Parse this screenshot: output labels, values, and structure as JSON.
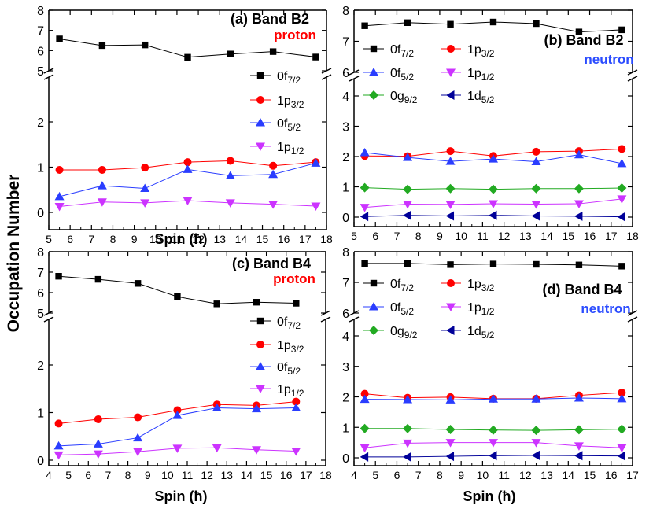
{
  "figure": {
    "ylabel": "Occupation Number",
    "xlabel_top_left": "Spin (ħ)",
    "xlabel_bottom_left": "Spin (ħ)",
    "xlabel_bottom_right": "Spin (ħ)"
  },
  "colors": {
    "0f7/2": "#000000",
    "1p3/2": "#ff0000",
    "0f5/2": "#2a3dff",
    "1p1/2": "#cc33ff",
    "0g9/2": "#22aa22",
    "1d5/2": "#000099",
    "proton_label": "#ff0000",
    "neutron_label": "#2b4cff"
  },
  "chart_data": [
    {
      "panel": "a",
      "type": "line",
      "title": "(a) Band B2",
      "subtitle": "proton",
      "x": [
        5.5,
        7.5,
        9.5,
        11.5,
        13.5,
        15.5,
        17.5
      ],
      "xlim": [
        5,
        18
      ],
      "xticks": [
        5,
        6,
        7,
        8,
        9,
        10,
        11,
        12,
        13,
        14,
        15,
        16,
        17,
        18
      ],
      "upper_ylim": [
        5,
        8
      ],
      "upper_yticks": [
        5,
        6,
        7,
        8
      ],
      "lower_ylim": [
        0,
        3
      ],
      "lower_yticks": [
        0,
        1,
        2
      ],
      "series": [
        {
          "name": "0f7/2",
          "orb": "f",
          "sub": "7/2",
          "marker": "square",
          "axis": "upper",
          "values": [
            6.58,
            6.25,
            6.28,
            5.67,
            5.83,
            5.95,
            5.68
          ]
        },
        {
          "name": "1p3/2",
          "orb": "p",
          "sub": "3/2",
          "marker": "circle",
          "axis": "lower",
          "values": [
            0.94,
            0.94,
            0.99,
            1.11,
            1.14,
            1.03,
            1.11
          ]
        },
        {
          "name": "0f5/2",
          "orb": "f",
          "sub": "5/2",
          "marker": "triangle-up",
          "axis": "lower",
          "values": [
            0.35,
            0.59,
            0.53,
            0.95,
            0.81,
            0.84,
            1.09
          ]
        },
        {
          "name": "1p1/2",
          "orb": "p",
          "sub": "1/2",
          "marker": "triangle-down",
          "axis": "lower",
          "values": [
            0.13,
            0.23,
            0.21,
            0.26,
            0.21,
            0.18,
            0.14
          ]
        }
      ]
    },
    {
      "panel": "b",
      "type": "line",
      "title": "(b) Band B2",
      "subtitle": "neutron",
      "x": [
        5.5,
        7.5,
        9.5,
        11.5,
        13.5,
        15.5,
        17.5
      ],
      "xlim": [
        5,
        18
      ],
      "xticks": [
        5,
        6,
        7,
        8,
        9,
        10,
        11,
        12,
        13,
        14,
        15,
        16,
        17,
        18
      ],
      "upper_ylim": [
        6,
        8
      ],
      "upper_yticks": [
        6,
        7,
        8
      ],
      "lower_ylim": [
        -0.2,
        4.3
      ],
      "lower_yticks": [
        0,
        1,
        2,
        3,
        4
      ],
      "series": [
        {
          "name": "0f7/2",
          "orb": "f",
          "sub": "7/2",
          "marker": "square",
          "axis": "upper",
          "values": [
            7.5,
            7.6,
            7.55,
            7.62,
            7.57,
            7.3,
            7.37
          ]
        },
        {
          "name": "1p3/2",
          "orb": "p",
          "sub": "3/2",
          "marker": "circle",
          "axis": "lower",
          "values": [
            2.02,
            2.01,
            2.18,
            2.02,
            2.16,
            2.18,
            2.25
          ]
        },
        {
          "name": "0f5/2",
          "orb": "f",
          "sub": "5/2",
          "marker": "triangle-up",
          "axis": "lower",
          "values": [
            2.13,
            1.97,
            1.84,
            1.92,
            1.83,
            2.06,
            1.77
          ]
        },
        {
          "name": "1p1/2",
          "orb": "p",
          "sub": "1/2",
          "marker": "triangle-down",
          "axis": "lower",
          "values": [
            0.32,
            0.43,
            0.42,
            0.44,
            0.43,
            0.44,
            0.6
          ]
        },
        {
          "name": "0g9/2",
          "orb": "g",
          "sub": "9/2",
          "marker": "diamond",
          "axis": "lower",
          "values": [
            0.97,
            0.92,
            0.94,
            0.92,
            0.94,
            0.94,
            0.96
          ]
        },
        {
          "name": "1d5/2",
          "orb": "d",
          "sub": "5/2",
          "marker": "triangle-left",
          "axis": "lower",
          "values": [
            0.02,
            0.06,
            0.04,
            0.06,
            0.04,
            0.03,
            0.01
          ]
        }
      ]
    },
    {
      "panel": "c",
      "type": "line",
      "title": "(c) Band B4",
      "subtitle": "proton",
      "x": [
        4.5,
        6.5,
        8.5,
        10.5,
        12.5,
        14.5,
        16.5
      ],
      "xlim": [
        4,
        18
      ],
      "xticks": [
        4,
        5,
        6,
        7,
        8,
        9,
        10,
        11,
        12,
        13,
        14,
        15,
        16,
        17,
        18
      ],
      "upper_ylim": [
        5,
        8
      ],
      "upper_yticks": [
        5,
        6,
        7,
        8
      ],
      "lower_ylim": [
        0,
        3
      ],
      "lower_yticks": [
        0,
        1,
        2
      ],
      "series": [
        {
          "name": "0f7/2",
          "orb": "f",
          "sub": "7/2",
          "marker": "square",
          "axis": "upper",
          "values": [
            6.8,
            6.65,
            6.45,
            5.8,
            5.45,
            5.53,
            5.48
          ]
        },
        {
          "name": "1p3/2",
          "orb": "p",
          "sub": "3/2",
          "marker": "circle",
          "axis": "lower",
          "values": [
            0.77,
            0.86,
            0.9,
            1.05,
            1.17,
            1.15,
            1.23
          ]
        },
        {
          "name": "0f5/2",
          "orb": "f",
          "sub": "5/2",
          "marker": "triangle-up",
          "axis": "lower",
          "values": [
            0.3,
            0.34,
            0.47,
            0.94,
            1.1,
            1.08,
            1.1
          ]
        },
        {
          "name": "1p1/2",
          "orb": "p",
          "sub": "1/2",
          "marker": "triangle-down",
          "axis": "lower",
          "values": [
            0.11,
            0.13,
            0.18,
            0.25,
            0.26,
            0.22,
            0.19
          ]
        }
      ]
    },
    {
      "panel": "d",
      "type": "line",
      "title": "(d) Band B4",
      "subtitle": "neutron",
      "x": [
        4.5,
        6.5,
        8.5,
        10.5,
        12.5,
        14.5,
        16.5
      ],
      "xlim": [
        4,
        17
      ],
      "xticks": [
        4,
        5,
        6,
        7,
        8,
        9,
        10,
        11,
        12,
        13,
        14,
        15,
        16,
        17
      ],
      "upper_ylim": [
        6,
        8
      ],
      "upper_yticks": [
        6,
        7,
        8
      ],
      "lower_ylim": [
        -0.2,
        4.3
      ],
      "lower_yticks": [
        0,
        1,
        2,
        3,
        4
      ],
      "series": [
        {
          "name": "0f7/2",
          "orb": "f",
          "sub": "7/2",
          "marker": "square",
          "axis": "upper",
          "values": [
            7.62,
            7.62,
            7.58,
            7.6,
            7.59,
            7.57,
            7.53
          ]
        },
        {
          "name": "1p3/2",
          "orb": "p",
          "sub": "3/2",
          "marker": "circle",
          "axis": "lower",
          "values": [
            2.1,
            1.97,
            1.99,
            1.94,
            1.94,
            2.05,
            2.14
          ]
        },
        {
          "name": "0f5/2",
          "orb": "f",
          "sub": "5/2",
          "marker": "triangle-up",
          "axis": "lower",
          "values": [
            1.92,
            1.91,
            1.9,
            1.93,
            1.93,
            1.96,
            1.94
          ]
        },
        {
          "name": "1p1/2",
          "orb": "p",
          "sub": "1/2",
          "marker": "triangle-down",
          "axis": "lower",
          "values": [
            0.33,
            0.48,
            0.5,
            0.5,
            0.5,
            0.39,
            0.33
          ]
        },
        {
          "name": "0g9/2",
          "orb": "g",
          "sub": "9/2",
          "marker": "diamond",
          "axis": "lower",
          "values": [
            0.96,
            0.96,
            0.93,
            0.91,
            0.9,
            0.92,
            0.94
          ]
        },
        {
          "name": "1d5/2",
          "orb": "d",
          "sub": "5/2",
          "marker": "triangle-left",
          "axis": "lower",
          "values": [
            0.03,
            0.03,
            0.05,
            0.07,
            0.08,
            0.07,
            0.06
          ]
        }
      ]
    }
  ]
}
